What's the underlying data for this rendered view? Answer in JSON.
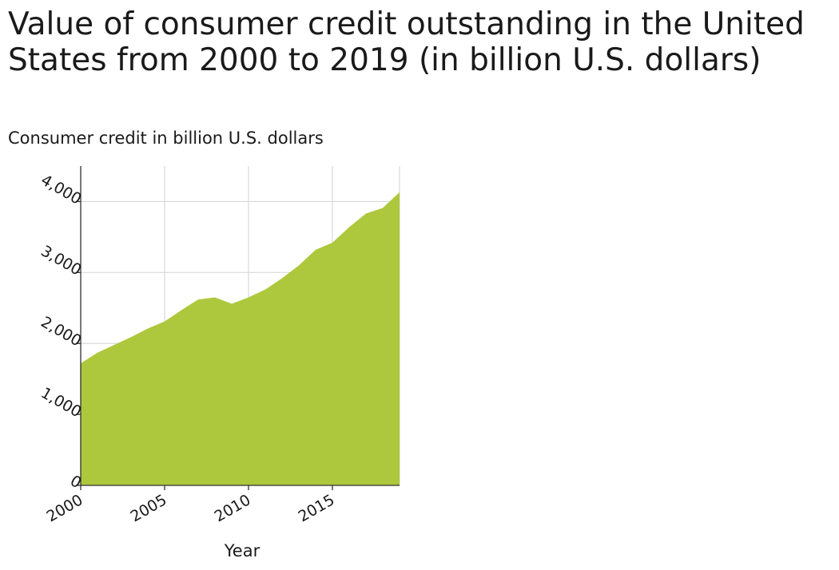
{
  "chart_data": {
    "type": "area",
    "title": "Value of consumer credit outstanding in the United States from 2000 to 2019 (in billion U.S. dollars)",
    "ylabel": "Consumer credit in billion U.S. dollars",
    "xlabel": "Year",
    "x": [
      2000,
      2001,
      2002,
      2003,
      2004,
      2005,
      2006,
      2007,
      2008,
      2009,
      2010,
      2011,
      2012,
      2013,
      2014,
      2015,
      2016,
      2017,
      2018,
      2019
    ],
    "series": [
      {
        "values": [
          1720,
          1870,
          1980,
          2090,
          2210,
          2310,
          2470,
          2620,
          2650,
          2560,
          2650,
          2760,
          2920,
          3100,
          3320,
          3420,
          3640,
          3830,
          3910,
          4130
        ]
      }
    ],
    "xlim": [
      2000,
      2019
    ],
    "ylim": [
      0,
      4500
    ],
    "x_ticks": [
      2000,
      2005,
      2010,
      2015
    ],
    "x_tick_labels": [
      "2000",
      "2005",
      "2010",
      "2015"
    ],
    "y_ticks": [
      0,
      1000,
      2000,
      3000,
      4000
    ],
    "y_tick_labels": [
      "0",
      "1,000",
      "2,000",
      "3,000",
      "4,000"
    ],
    "grid": true,
    "fill_color": "#adc83d",
    "grid_color": "#d9d9d9",
    "axis_color": "#333333"
  }
}
